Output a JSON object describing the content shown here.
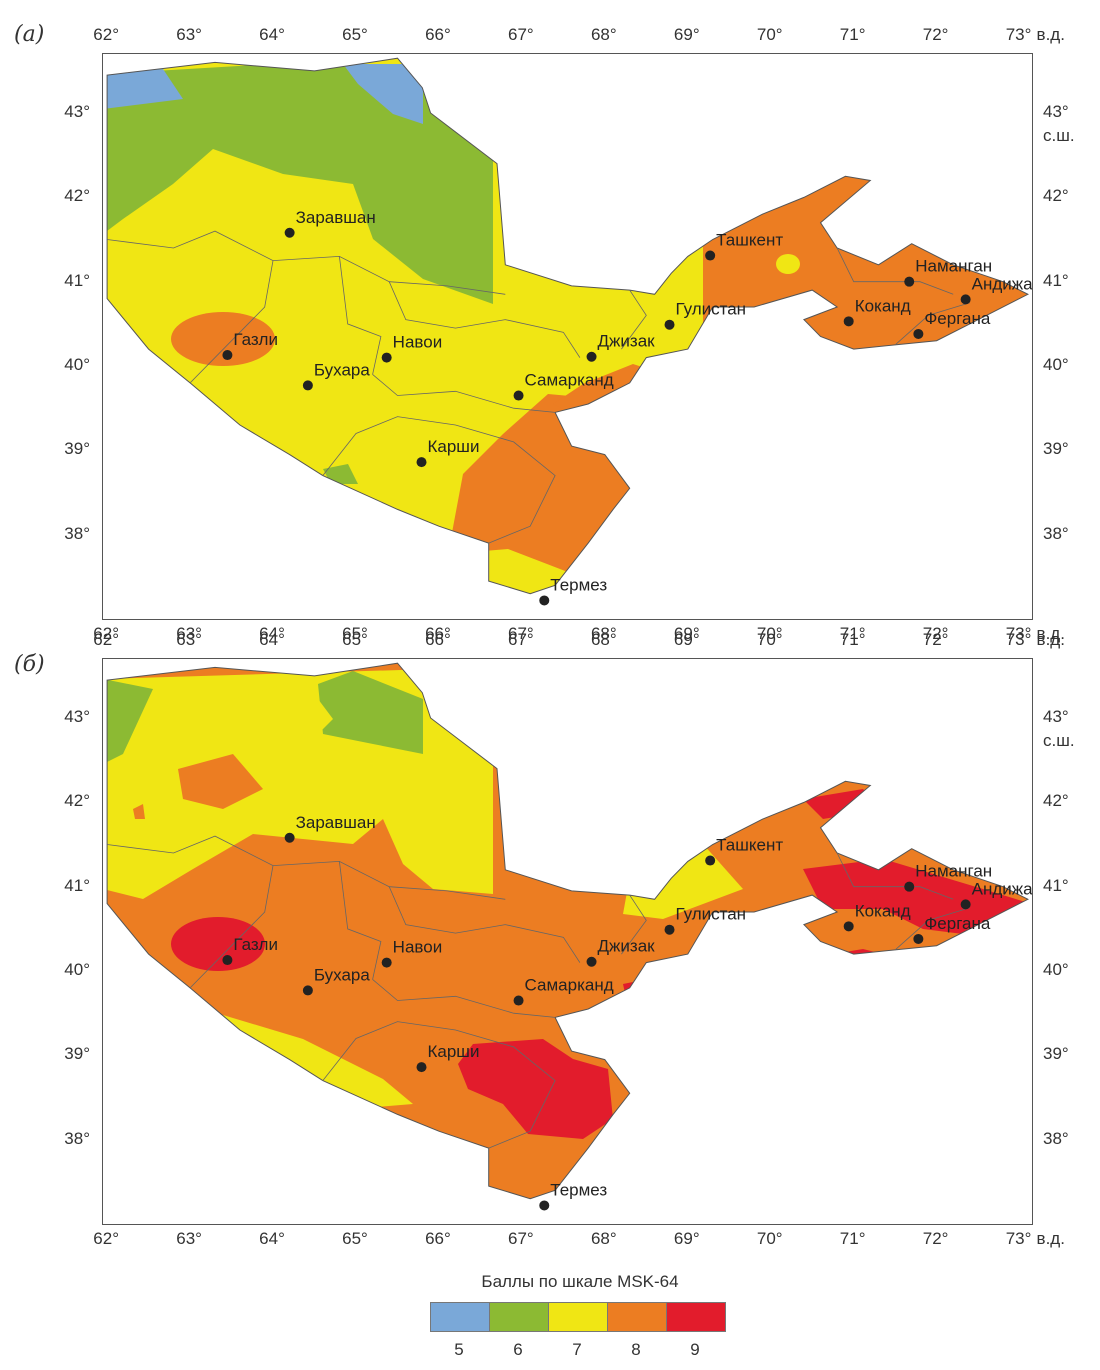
{
  "panels": [
    {
      "label": "(а)"
    },
    {
      "label": "(б)"
    }
  ],
  "axes": {
    "lon_ticks": [
      "62°",
      "63°",
      "64°",
      "65°",
      "66°",
      "67°",
      "68°",
      "69°",
      "70°",
      "71°",
      "72°",
      "73°"
    ],
    "lon_unit": "в.д.",
    "lat_ticks": [
      "43°",
      "42°",
      "41°",
      "40°",
      "39°",
      "38°"
    ],
    "lat_unit": "с.ш."
  },
  "cities": [
    {
      "name": "Заравшан",
      "lon": 64.2,
      "lat": 41.58
    },
    {
      "name": "Ташкент",
      "lon": 69.27,
      "lat": 41.31
    },
    {
      "name": "Наманган",
      "lon": 71.67,
      "lat": 41.0
    },
    {
      "name": "Андижан",
      "lon": 72.35,
      "lat": 40.79
    },
    {
      "name": "Гулистан",
      "lon": 68.78,
      "lat": 40.49
    },
    {
      "name": "Коканд",
      "lon": 70.94,
      "lat": 40.53
    },
    {
      "name": "Газли",
      "lon": 63.45,
      "lat": 40.13
    },
    {
      "name": "Навои",
      "lon": 65.37,
      "lat": 40.1
    },
    {
      "name": "Джизак",
      "lon": 67.84,
      "lat": 40.11
    },
    {
      "name": "Фергана",
      "lon": 71.78,
      "lat": 40.38
    },
    {
      "name": "Бухара",
      "lon": 64.42,
      "lat": 39.77
    },
    {
      "name": "Самарканд",
      "lon": 66.96,
      "lat": 39.65
    },
    {
      "name": "Карши",
      "lon": 65.79,
      "lat": 38.86
    },
    {
      "name": "Термез",
      "lon": 67.27,
      "lat": 37.22
    }
  ],
  "legend": {
    "title": "Баллы по шкале MSK-64",
    "items": [
      {
        "label": "5",
        "color": "#7aa8d8"
      },
      {
        "label": "6",
        "color": "#8cba33"
      },
      {
        "label": "7",
        "color": "#f0e614"
      },
      {
        "label": "8",
        "color": "#ec7d22"
      },
      {
        "label": "9",
        "color": "#e21c2c"
      }
    ]
  }
}
